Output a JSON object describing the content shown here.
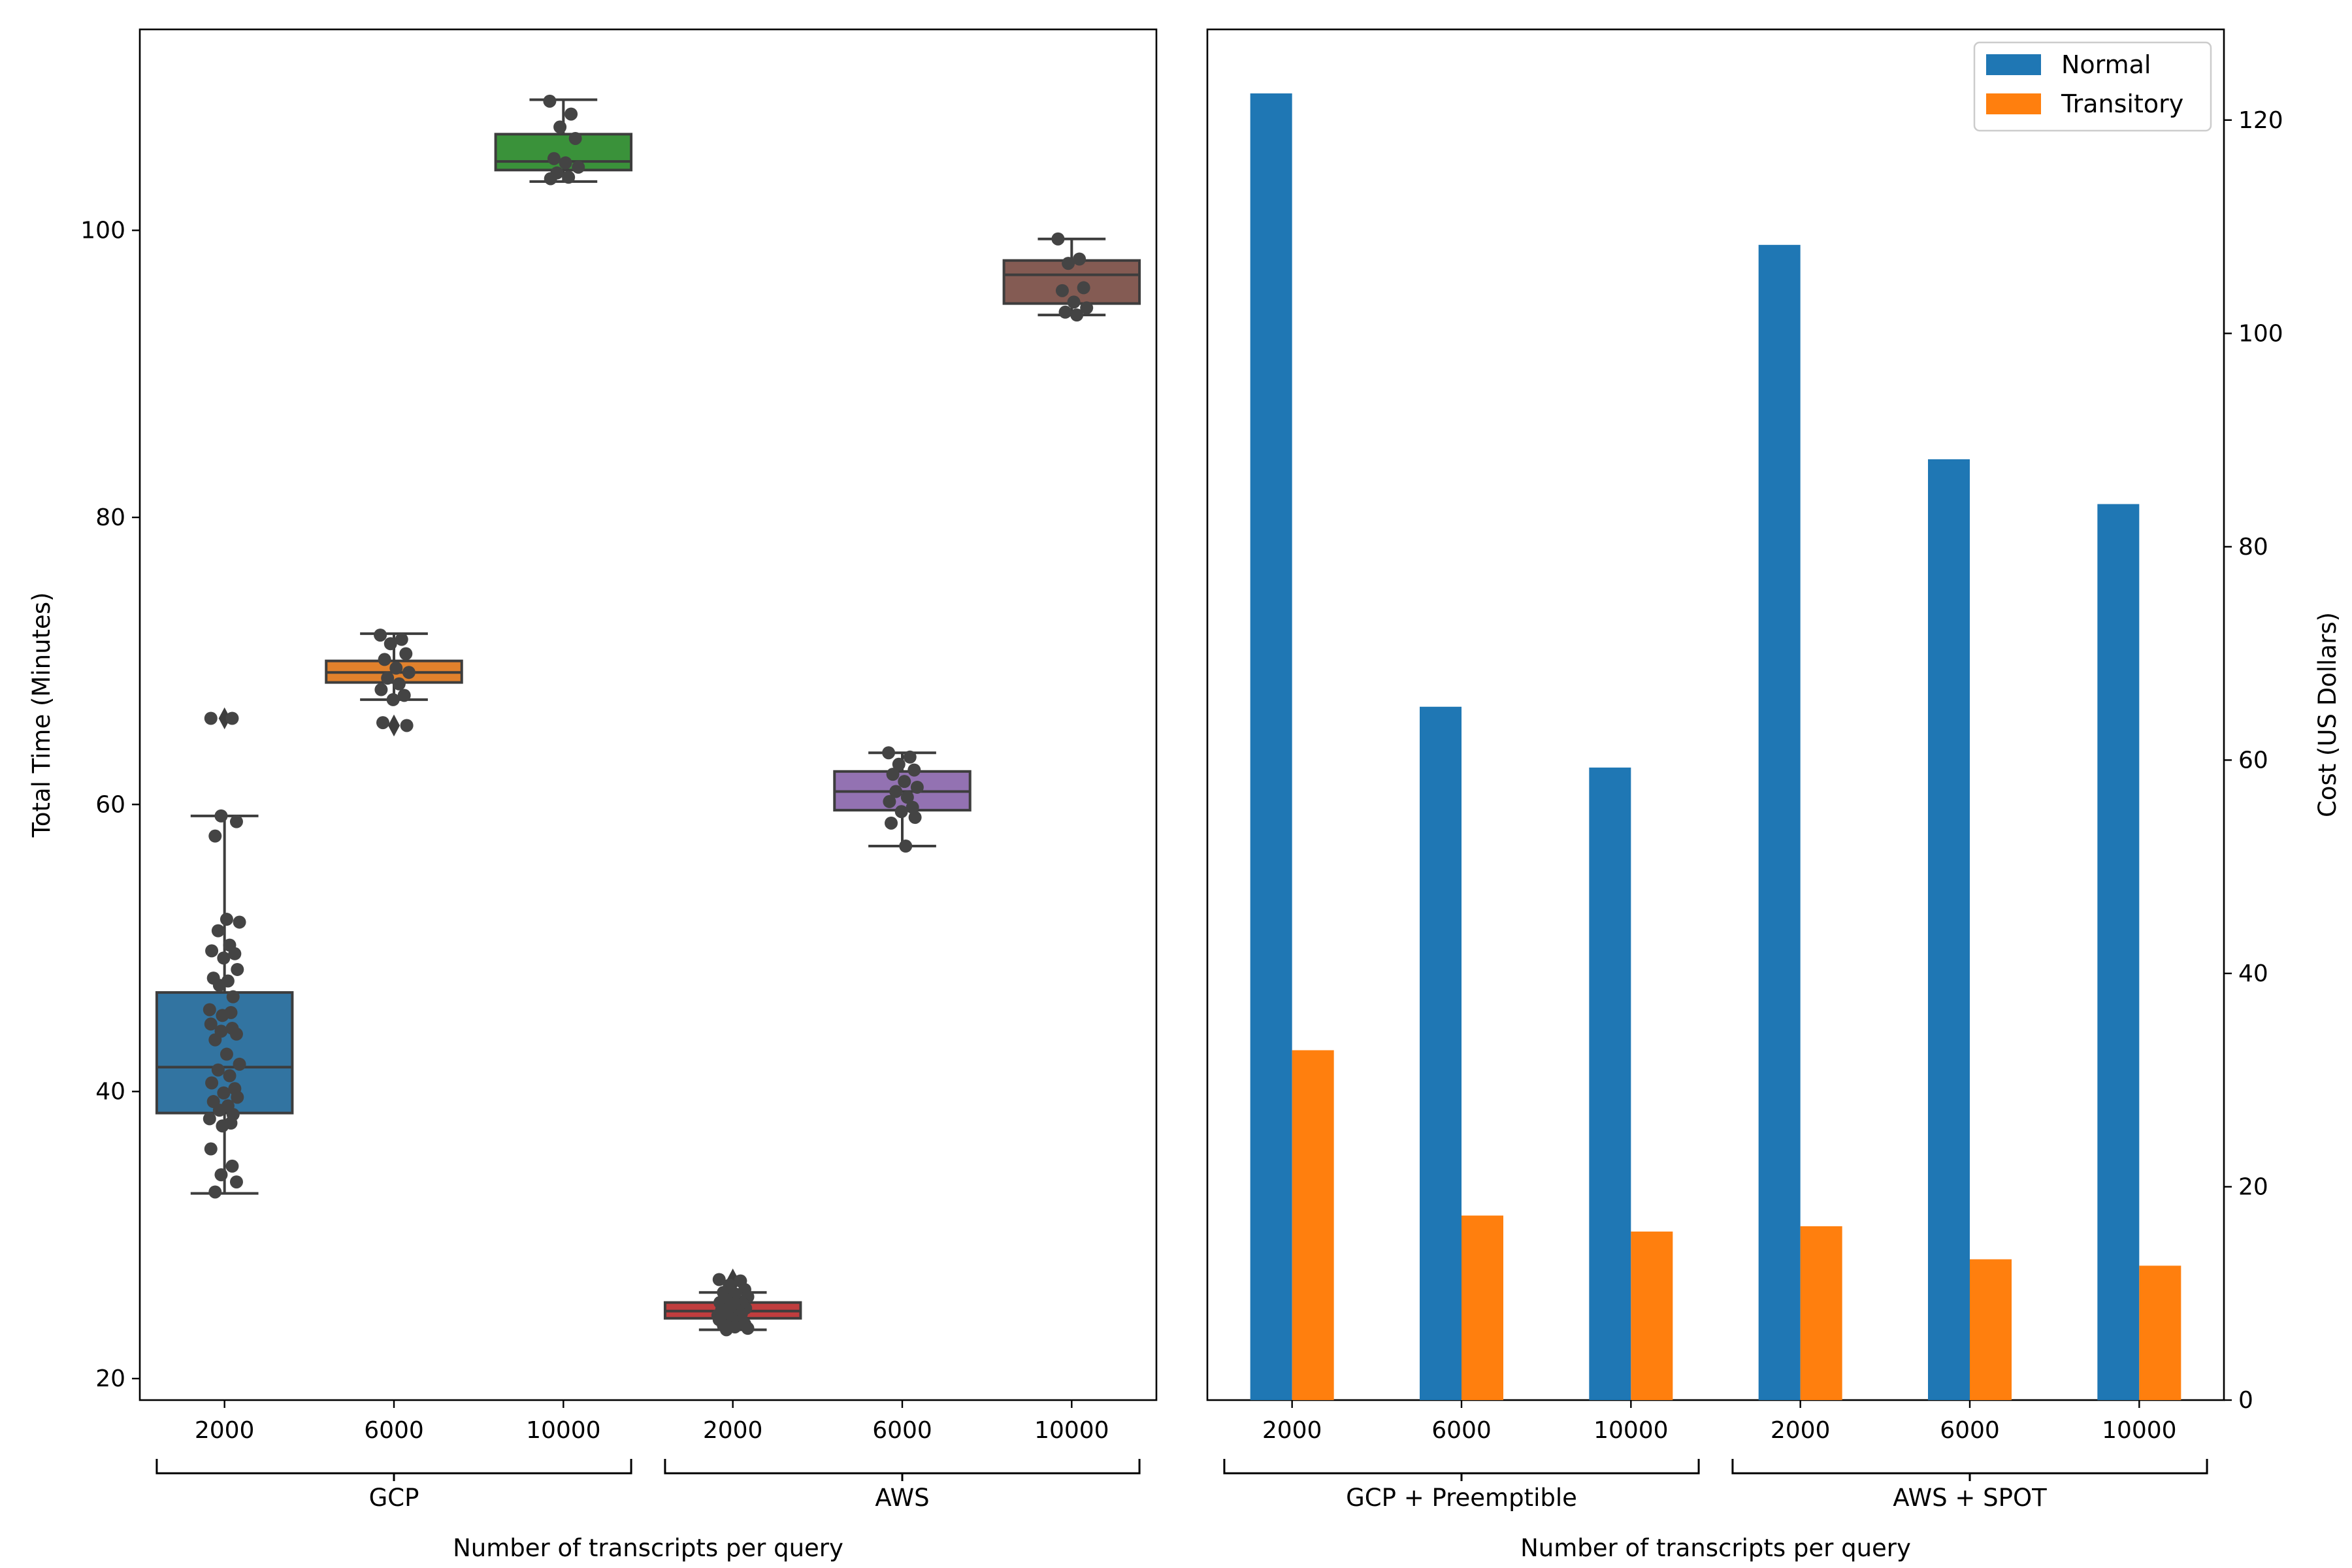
{
  "chart_data": [
    {
      "type": "box",
      "ylabel": "Total Time (Minutes)",
      "xlabel": "Number of transcripts per query",
      "ylim": [
        18.5,
        114
      ],
      "yticks": [
        20,
        40,
        60,
        80,
        100
      ],
      "groups": [
        {
          "label": "GCP",
          "categories": [
            "2000",
            "6000",
            "10000"
          ]
        },
        {
          "label": "AWS",
          "categories": [
            "2000",
            "6000",
            "10000"
          ]
        }
      ],
      "boxes": [
        {
          "group": "GCP",
          "category": "2000",
          "color": "#3274a1",
          "q1": 38.5,
          "median": 41.7,
          "q3": 46.9,
          "whisker_low": 32.9,
          "whisker_high": 59.2,
          "outliers": [
            66.0
          ],
          "points": [
            66.0,
            66.0,
            59.2,
            58.8,
            57.8,
            52.0,
            51.8,
            51.2,
            50.2,
            49.8,
            49.6,
            49.3,
            48.5,
            47.9,
            47.7,
            47.4,
            46.6,
            45.7,
            45.5,
            45.3,
            44.7,
            44.4,
            44.2,
            44.0,
            43.6,
            42.6,
            41.9,
            41.5,
            41.1,
            40.6,
            40.2,
            39.9,
            39.6,
            39.3,
            39.0,
            38.7,
            38.4,
            38.1,
            37.8,
            37.6,
            36.0,
            34.8,
            34.2,
            33.7,
            33.0
          ]
        },
        {
          "group": "GCP",
          "category": "6000",
          "color": "#e1812c",
          "q1": 68.5,
          "median": 69.2,
          "q3": 70.0,
          "whisker_low": 67.3,
          "whisker_high": 71.9,
          "outliers": [
            65.5
          ],
          "points": [
            71.8,
            71.5,
            71.2,
            70.5,
            70.1,
            69.5,
            69.2,
            68.8,
            68.4,
            68.0,
            67.6,
            67.3,
            65.5,
            65.7
          ]
        },
        {
          "group": "GCP",
          "category": "10000",
          "color": "#3a923a",
          "q1": 104.2,
          "median": 104.8,
          "q3": 106.7,
          "whisker_low": 103.4,
          "whisker_high": 109.1,
          "outliers": [],
          "points": [
            109.0,
            108.1,
            107.2,
            106.4,
            105.0,
            104.7,
            104.4,
            104.0,
            103.7,
            103.6
          ]
        },
        {
          "group": "AWS",
          "category": "2000",
          "color": "#c03d3e",
          "q1": 24.2,
          "median": 24.7,
          "q3": 25.3,
          "whisker_low": 23.4,
          "whisker_high": 26.0,
          "outliers": [
            26.9,
            26.6
          ],
          "points": [
            26.9,
            26.8,
            26.5,
            26.2,
            26.0,
            25.9,
            25.7,
            25.5,
            25.4,
            25.3,
            25.2,
            25.0,
            24.9,
            24.8,
            24.7,
            24.6,
            24.5,
            24.4,
            24.3,
            24.2,
            24.1,
            24.0,
            23.9,
            23.8,
            23.7,
            23.6,
            23.5,
            23.4
          ]
        },
        {
          "group": "AWS",
          "category": "6000",
          "color": "#9372b2",
          "q1": 59.6,
          "median": 60.9,
          "q3": 62.3,
          "whisker_low": 57.1,
          "whisker_high": 63.6,
          "outliers": [],
          "points": [
            63.6,
            63.3,
            62.8,
            62.4,
            62.1,
            61.6,
            61.2,
            60.9,
            60.5,
            60.2,
            59.8,
            59.5,
            59.1,
            58.7,
            57.1
          ]
        },
        {
          "group": "AWS",
          "category": "10000",
          "color": "#845b53",
          "q1": 94.9,
          "median": 96.9,
          "q3": 97.9,
          "whisker_low": 94.1,
          "whisker_high": 99.4,
          "outliers": [],
          "points": [
            99.4,
            98.0,
            97.7,
            96.0,
            95.8,
            95.0,
            94.6,
            94.3,
            94.1
          ]
        }
      ]
    },
    {
      "type": "bar",
      "ylabel": "Cost (US Dollars)",
      "xlabel": "Number of transcripts per query",
      "ylim": [
        0,
        128.5
      ],
      "yticks": [
        0,
        20,
        40,
        60,
        80,
        100,
        120
      ],
      "groups": [
        {
          "label": "GCP + Preemptible",
          "categories": [
            "2000",
            "6000",
            "10000"
          ]
        },
        {
          "label": "AWS + SPOT",
          "categories": [
            "2000",
            "6000",
            "10000"
          ]
        }
      ],
      "legend_position": "top-right",
      "series": [
        {
          "name": "Normal",
          "color": "#1f77b4",
          "values": [
            122.5,
            65.0,
            59.3,
            108.3,
            88.2,
            84.0
          ]
        },
        {
          "name": "Transitory",
          "color": "#ff7f0e",
          "values": [
            32.8,
            17.3,
            15.8,
            16.3,
            13.2,
            12.6
          ]
        }
      ]
    }
  ]
}
